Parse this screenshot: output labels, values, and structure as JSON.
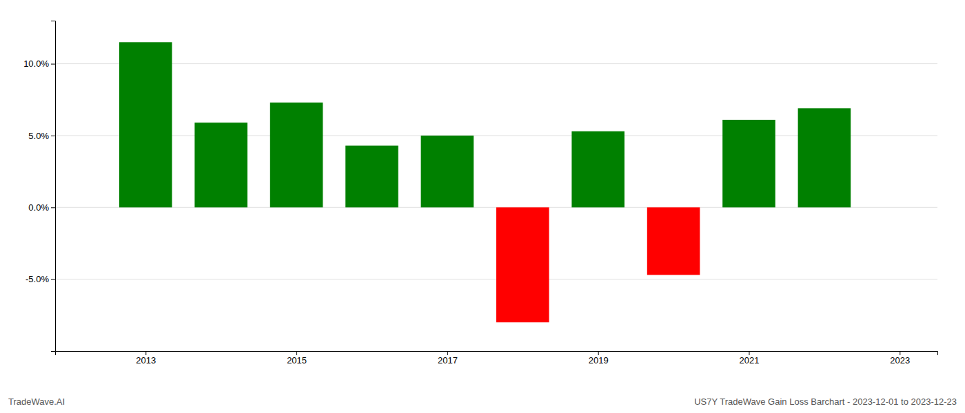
{
  "chart_data": {
    "type": "bar",
    "x": [
      2013,
      2014,
      2015,
      2016,
      2017,
      2018,
      2019,
      2020,
      2021,
      2022
    ],
    "values": [
      0.115,
      0.059,
      0.073,
      0.043,
      0.05,
      -0.08,
      0.053,
      -0.047,
      0.061,
      0.069
    ],
    "colors": [
      "#008000",
      "#008000",
      "#008000",
      "#008000",
      "#008000",
      "#ff0000",
      "#008000",
      "#ff0000",
      "#008000",
      "#008000"
    ],
    "xlim": [
      2011.8,
      2023.5
    ],
    "xticks": [
      2013,
      2015,
      2017,
      2019,
      2021,
      2023
    ],
    "ylim": [
      -0.1,
      0.13
    ],
    "yticks": [
      {
        "value": -0.05,
        "label": "-5.0%"
      },
      {
        "value": 0.0,
        "label": "0.0%"
      },
      {
        "value": 0.05,
        "label": "5.0%"
      },
      {
        "value": 0.1,
        "label": "10.0%"
      }
    ],
    "grid": true,
    "annotations": [
      "TradeWave.AI",
      "US7Y TradeWave Gain Loss Barchart - 2023-12-01 to 2023-12-23"
    ]
  }
}
